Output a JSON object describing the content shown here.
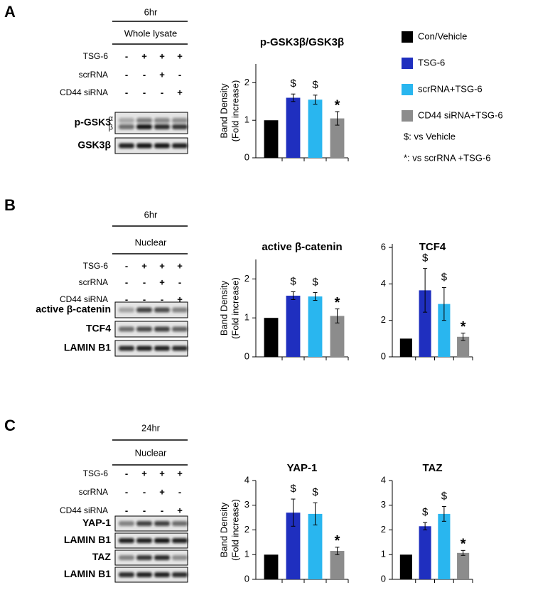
{
  "panels": [
    {
      "letter": "A",
      "time": "6hr",
      "fraction": "Whole lysate",
      "treatments": [
        {
          "name": "TSG-6",
          "signs": [
            "-",
            "+",
            "+",
            "+"
          ]
        },
        {
          "name": "scrRNA",
          "signs": [
            "-",
            "-",
            "+",
            "-"
          ]
        },
        {
          "name": "CD44 siRNA",
          "signs": [
            "-",
            "-",
            "-",
            "+"
          ]
        }
      ],
      "blots": [
        "p-GSK3",
        "GSK3β"
      ],
      "isoforms": [
        "α",
        "β"
      ]
    },
    {
      "letter": "B",
      "time": "6hr",
      "fraction": "Nuclear",
      "treatments": [
        {
          "name": "TSG-6",
          "signs": [
            "-",
            "+",
            "+",
            "+"
          ]
        },
        {
          "name": "scrRNA",
          "signs": [
            "-",
            "-",
            "+",
            "-"
          ]
        },
        {
          "name": "CD44 siRNA",
          "signs": [
            "-",
            "-",
            "-",
            "+"
          ]
        }
      ],
      "blots": [
        "active β-catenin",
        "TCF4",
        "LAMIN B1"
      ]
    },
    {
      "letter": "C",
      "time": "24hr",
      "fraction": "Nuclear",
      "treatments": [
        {
          "name": "TSG-6",
          "signs": [
            "-",
            "+",
            "+",
            "+"
          ]
        },
        {
          "name": "scrRNA",
          "signs": [
            "-",
            "-",
            "+",
            "-"
          ]
        },
        {
          "name": "CD44 siRNA",
          "signs": [
            "-",
            "-",
            "-",
            "+"
          ]
        }
      ],
      "blots": [
        "YAP-1",
        "LAMIN B1",
        "TAZ",
        "LAMIN B1"
      ]
    }
  ],
  "legend": {
    "items": [
      "Con/Vehicle",
      "TSG-6",
      "scrRNA+TSG-6",
      "CD44 siRNA+TSG-6"
    ],
    "colors": [
      "#000000",
      "#1f2fbf",
      "#29b6ef",
      "#8c8c8c"
    ],
    "notes": [
      "$: vs Vehicle",
      "*: vs scrRNA +TSG-6"
    ]
  },
  "chart_data": [
    {
      "type": "bar",
      "title": "p-GSK3β/GSK3β",
      "ylabel": [
        "Band Density",
        "(Fold increase)"
      ],
      "ylim": [
        0,
        2.5
      ],
      "yticks": [
        0,
        1,
        2
      ],
      "values": [
        1,
        1.6,
        1.55,
        1.05
      ],
      "errors": [
        0,
        0.1,
        0.12,
        0.18
      ],
      "annotations": [
        null,
        "$",
        "$",
        "*"
      ],
      "colors": [
        "#000000",
        "#1f2fbf",
        "#29b6ef",
        "#8c8c8c"
      ]
    },
    {
      "type": "bar",
      "title": "active β-catenin",
      "ylabel": [
        "Band Density",
        "(Fold increase)"
      ],
      "ylim": [
        0,
        2.5
      ],
      "yticks": [
        0,
        1,
        2
      ],
      "values": [
        1,
        1.57,
        1.55,
        1.05
      ],
      "errors": [
        0,
        0.1,
        0.1,
        0.18
      ],
      "annotations": [
        null,
        "$",
        "$",
        "*"
      ],
      "colors": [
        "#000000",
        "#1f2fbf",
        "#29b6ef",
        "#8c8c8c"
      ]
    },
    {
      "type": "bar",
      "title": "TCF4",
      "ylim": [
        0,
        6.2
      ],
      "yticks": [
        0,
        2,
        4,
        6
      ],
      "values": [
        1,
        3.65,
        2.9,
        1.1
      ],
      "errors": [
        0,
        1.2,
        0.9,
        0.2
      ],
      "annotations": [
        null,
        "$",
        "$",
        "*"
      ],
      "colors": [
        "#000000",
        "#1f2fbf",
        "#29b6ef",
        "#8c8c8c"
      ]
    },
    {
      "type": "bar",
      "title": "YAP-1",
      "ylabel": [
        "Band Density",
        "(Fold increase)"
      ],
      "ylim": [
        0,
        4
      ],
      "yticks": [
        0,
        1,
        2,
        3,
        4
      ],
      "values": [
        1,
        2.7,
        2.65,
        1.15
      ],
      "errors": [
        0,
        0.55,
        0.45,
        0.15
      ],
      "annotations": [
        null,
        "$",
        "$",
        "*"
      ],
      "colors": [
        "#000000",
        "#1f2fbf",
        "#29b6ef",
        "#8c8c8c"
      ]
    },
    {
      "type": "bar",
      "title": "TAZ",
      "ylim": [
        0,
        4
      ],
      "yticks": [
        0,
        1,
        2,
        3,
        4
      ],
      "values": [
        1,
        2.15,
        2.65,
        1.07
      ],
      "errors": [
        0,
        0.15,
        0.3,
        0.1
      ],
      "annotations": [
        null,
        "$",
        "$",
        "*"
      ],
      "colors": [
        "#000000",
        "#1f2fbf",
        "#29b6ef",
        "#8c8c8c"
      ]
    }
  ]
}
